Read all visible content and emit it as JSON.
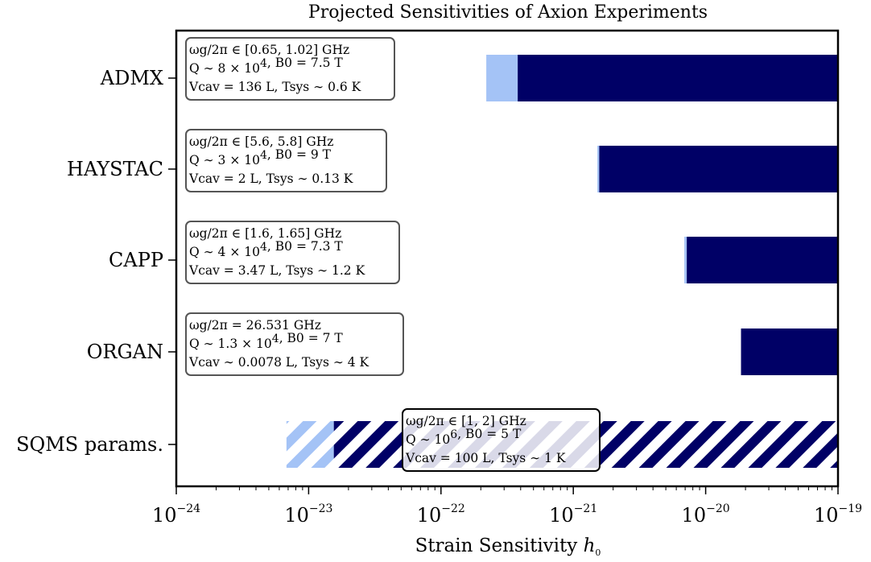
{
  "chart_data": {
    "type": "bar",
    "orientation": "horizontal",
    "title": "Projected Sensitivities of Axion Experiments",
    "xlabel": "Strain Sensitivity",
    "xlabel_symbol": "h",
    "xlabel_symbol_subscript": "0",
    "xscale": "log",
    "xlim": [
      1e-24,
      1e-19
    ],
    "x_ticks": [
      {
        "value": 1e-24,
        "label": "10",
        "exponent": "−24"
      },
      {
        "value": 1e-23,
        "label": "10",
        "exponent": "−23"
      },
      {
        "value": 1e-22,
        "label": "10",
        "exponent": "−22"
      },
      {
        "value": 1e-21,
        "label": "10",
        "exponent": "−21"
      },
      {
        "value": 1e-20,
        "label": "10",
        "exponent": "−20"
      },
      {
        "value": 1e-19,
        "label": "10",
        "exponent": "−19"
      }
    ],
    "grid": false,
    "colors": {
      "dark": "#000066",
      "light": "#a4c3f6",
      "hatch_light_bg": "#e8ebf3"
    },
    "experiments": [
      {
        "name": "ADMX",
        "light_range": [
          2.2e-22,
          3.8e-22
        ],
        "dark_range": [
          3.8e-22,
          1e-19
        ],
        "hatched": false,
        "annotation": [
          "ωg/2π ∈ [0.65, 1.02] GHz",
          "Q ∼ 8 × 10^4, B0 = 7.5 T",
          "Vcav = 136 L, Tsys ∼ 0.6 K"
        ]
      },
      {
        "name": "HAYSTAC",
        "light_range": [
          1.52e-21,
          1.57e-21
        ],
        "dark_range": [
          1.57e-21,
          1e-19
        ],
        "hatched": false,
        "annotation": [
          "ωg/2π ∈ [5.6, 5.8] GHz",
          "Q ∼ 3 × 10^4, B0 = 9 T",
          "Vcav = 2 L, Tsys ∼ 0.13 K"
        ]
      },
      {
        "name": "CAPP",
        "light_range": [
          6.9e-21,
          7.2e-21
        ],
        "dark_range": [
          7.2e-21,
          1e-19
        ],
        "hatched": false,
        "annotation": [
          "ωg/2π ∈ [1.6, 1.65] GHz",
          "Q ∼ 4 × 10^4, B0 = 7.3 T",
          "Vcav = 3.47 L, Tsys ∼ 1.2 K"
        ]
      },
      {
        "name": "ORGAN",
        "light_range": null,
        "dark_range": [
          1.85e-20,
          1e-19
        ],
        "hatched": false,
        "annotation": [
          "ωg/2π = 26.531 GHz",
          "Q ∼ 1.3 × 10^4, B0 = 7 T",
          "Vcav ∼ 0.0078 L, Tsys ∼ 4 K"
        ]
      },
      {
        "name": "SQMS params.",
        "light_range": [
          6.8e-24,
          1.55e-23
        ],
        "dark_range": [
          1.55e-23,
          1e-19
        ],
        "hatched": true,
        "annotation": [
          "ωg/2π ∈ [1, 2] GHz",
          "Q ∼ 10^6, B0 = 5 T",
          "Vcav = 100 L, Tsys ∼ 1 K"
        ]
      }
    ]
  }
}
